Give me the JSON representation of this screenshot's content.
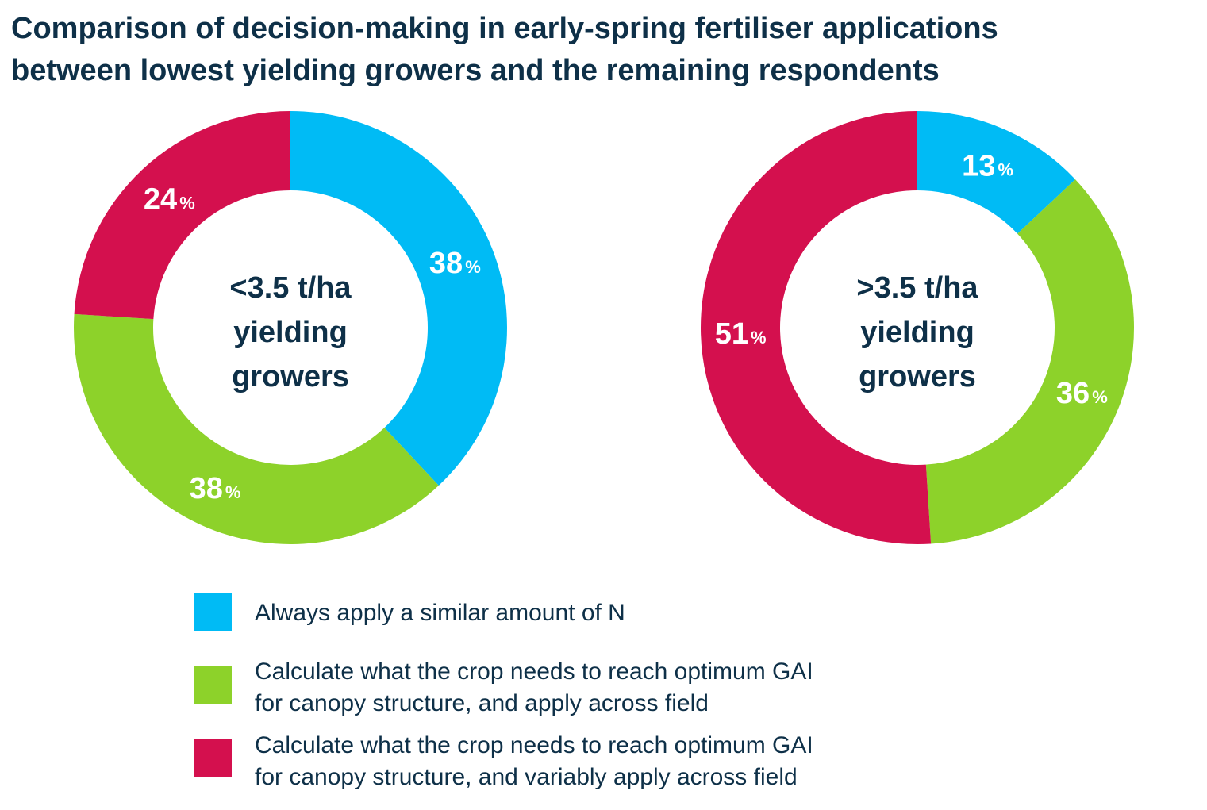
{
  "chart_data": {
    "type": "pie",
    "title": "Comparison of decision-making in early-spring fertiliser applications\nbetween lowest yielding growers and the remaining respondents",
    "categories": [
      "Always apply a similar amount of N",
      "Calculate what the crop needs to reach optimum GAI\nfor canopy structure, and apply across field",
      "Calculate what the crop needs to reach optimum GAI\nfor canopy structure, and variably apply across field"
    ],
    "colors": [
      "#00bbf5",
      "#8dd22a",
      "#d4104e"
    ],
    "legend_position": "bottom",
    "charts": [
      {
        "center_label": [
          "<3.5 t/ha",
          "yielding",
          "growers"
        ],
        "values": [
          38,
          38,
          24
        ],
        "data_labels": [
          "38",
          "38",
          "24"
        ]
      },
      {
        "center_label": [
          ">3.5 t/ha",
          "yielding",
          "growers"
        ],
        "values": [
          13,
          36,
          51
        ],
        "data_labels": [
          "13",
          "36",
          "51"
        ]
      }
    ],
    "percent_sign": "%"
  },
  "legend": {
    "items": [
      {
        "label": "Always apply a similar amount of N"
      },
      {
        "label": "Calculate what the crop needs to reach optimum GAI\nfor canopy structure, and apply across field"
      },
      {
        "label": "Calculate what the crop needs to reach optimum GAI\nfor canopy structure, and variably apply across field"
      }
    ]
  }
}
